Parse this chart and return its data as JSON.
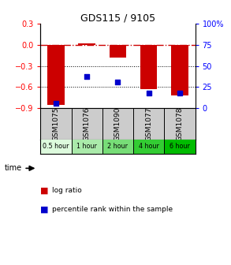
{
  "title": "GDS115 / 9105",
  "samples": [
    "GSM1075",
    "GSM1076",
    "GSM1090",
    "GSM1077",
    "GSM1078"
  ],
  "time_labels": [
    "0.5 hour",
    "1 hour",
    "2 hour",
    "4 hour",
    "6 hour"
  ],
  "time_colors": [
    "#ddfadd",
    "#aaeaaa",
    "#77dd77",
    "#33cc33",
    "#00bb00"
  ],
  "log_ratios": [
    -0.85,
    0.02,
    -0.18,
    -0.63,
    -0.72
  ],
  "percentile_ranks": [
    6,
    37,
    31,
    18,
    18
  ],
  "bar_color": "#cc0000",
  "dot_color": "#0000cc",
  "ylim_left": [
    -0.9,
    0.3
  ],
  "ylim_right": [
    0,
    100
  ],
  "yticks_left": [
    -0.9,
    -0.6,
    -0.3,
    0.0,
    0.3
  ],
  "yticks_right": [
    0,
    25,
    50,
    75,
    100
  ],
  "hline_y": 0.0,
  "dotted_lines": [
    -0.3,
    -0.6
  ],
  "bg_color": "#ffffff",
  "plot_bg": "#ffffff",
  "legend_log": "log ratio",
  "legend_pct": "percentile rank within the sample",
  "time_row_label": "time",
  "bar_width": 0.55
}
